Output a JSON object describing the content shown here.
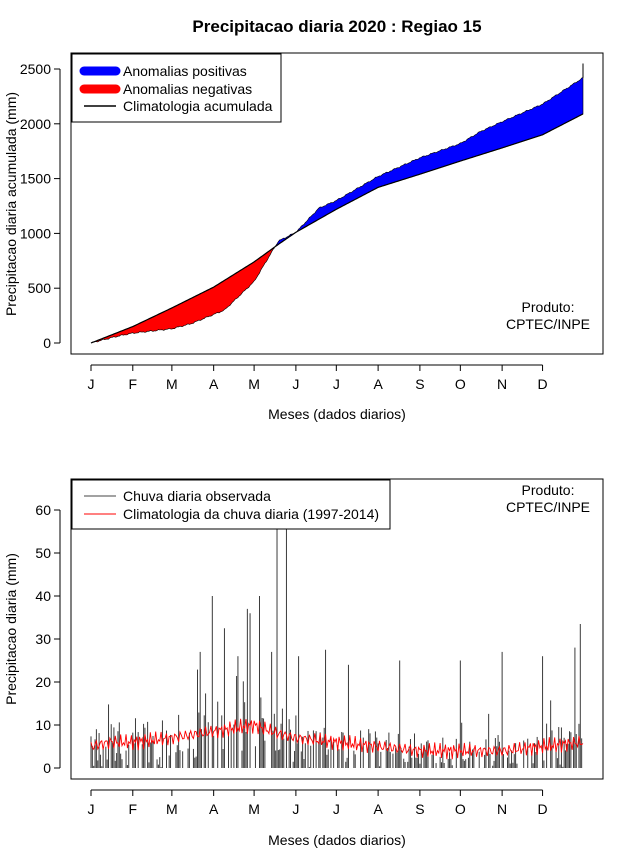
{
  "chart_data": [
    {
      "type": "area",
      "title": "Precipitacao diaria 2020 : Regiao 15",
      "xlabel": "Meses (dados diarios)",
      "ylabel": "Precipitacao diaria acumulada (mm)",
      "ylim": [
        0,
        2500
      ],
      "yticks": [
        0,
        500,
        1000,
        1500,
        2000,
        2500
      ],
      "xlim_days": [
        1,
        366
      ],
      "month_labels": [
        "J",
        "F",
        "M",
        "A",
        "M",
        "J",
        "J",
        "A",
        "S",
        "O",
        "N",
        "D"
      ],
      "month_start_days": [
        1,
        32,
        61,
        92,
        122,
        153,
        183,
        214,
        245,
        275,
        306,
        336
      ],
      "legend": [
        {
          "label": "Anomalias positivas",
          "color": "#0000ff"
        },
        {
          "label": "Anomalias negativas",
          "color": "#ff0000"
        },
        {
          "label": "Climatologia acumulada",
          "color": "#000000"
        }
      ],
      "annotation": [
        "Produto:",
        "CPTEC/INPE"
      ],
      "series": [
        {
          "name": "Climatologia acumulada",
          "days": [
            1,
            32,
            61,
            92,
            122,
            140,
            153,
            183,
            214,
            245,
            275,
            306,
            336,
            366
          ],
          "values": [
            0,
            150,
            320,
            510,
            740,
            900,
            1010,
            1220,
            1420,
            1540,
            1660,
            1780,
            1900,
            2090
          ]
        },
        {
          "name": "Precipitacao acumulada observada",
          "days": [
            1,
            20,
            32,
            61,
            75,
            92,
            100,
            122,
            140,
            153,
            170,
            183,
            214,
            245,
            275,
            290,
            306,
            336,
            366,
            366
          ],
          "values": [
            0,
            60,
            90,
            130,
            175,
            260,
            300,
            560,
            930,
            1010,
            1230,
            1300,
            1520,
            1690,
            1820,
            1930,
            2020,
            2180,
            2420,
            2550
          ]
        }
      ]
    },
    {
      "type": "bar",
      "xlabel": "Meses (dados diarios)",
      "ylabel": "Precipitacao diaria (mm)",
      "ylim": [
        0,
        65
      ],
      "yticks": [
        0,
        10,
        20,
        30,
        40,
        50,
        60
      ],
      "xlim_days": [
        1,
        366
      ],
      "month_labels": [
        "J",
        "F",
        "M",
        "A",
        "M",
        "J",
        "J",
        "A",
        "S",
        "O",
        "N",
        "D"
      ],
      "month_start_days": [
        1,
        32,
        61,
        92,
        122,
        153,
        183,
        214,
        245,
        275,
        306,
        336
      ],
      "legend": [
        {
          "label": "Chuva diaria observada",
          "color": "#444444"
        },
        {
          "label": "Climatologia da chuva diaria (1997-2014)",
          "color": "#ff0000"
        }
      ],
      "annotation": [
        "Produto:",
        "CPTEC/INPE"
      ],
      "series": [
        {
          "name": "Chuva diaria observada",
          "notable_peaks": [
            {
              "day": 82,
              "value": 27
            },
            {
              "day": 91,
              "value": 40
            },
            {
              "day": 100,
              "value": 32.5
            },
            {
              "day": 110,
              "value": 26
            },
            {
              "day": 117,
              "value": 37
            },
            {
              "day": 119,
              "value": 36
            },
            {
              "day": 126,
              "value": 40
            },
            {
              "day": 135,
              "value": 27
            },
            {
              "day": 139,
              "value": 80
            },
            {
              "day": 146,
              "value": 80
            },
            {
              "day": 155,
              "value": 26
            },
            {
              "day": 175,
              "value": 27.5
            },
            {
              "day": 192,
              "value": 24
            },
            {
              "day": 230,
              "value": 25
            },
            {
              "day": 275,
              "value": 25
            },
            {
              "day": 306,
              "value": 27
            },
            {
              "day": 336,
              "value": 26
            },
            {
              "day": 360,
              "value": 28
            },
            {
              "day": 364,
              "value": 33.5
            }
          ]
        },
        {
          "name": "Climatologia da chuva diaria (1997-2014)",
          "days": [
            1,
            15,
            32,
            61,
            92,
            122,
            140,
            153,
            183,
            214,
            245,
            275,
            306,
            336,
            366
          ],
          "values": [
            5,
            6,
            6,
            7,
            8.5,
            10,
            8,
            7,
            6,
            5,
            4,
            4,
            4,
            5,
            6
          ]
        }
      ]
    }
  ]
}
